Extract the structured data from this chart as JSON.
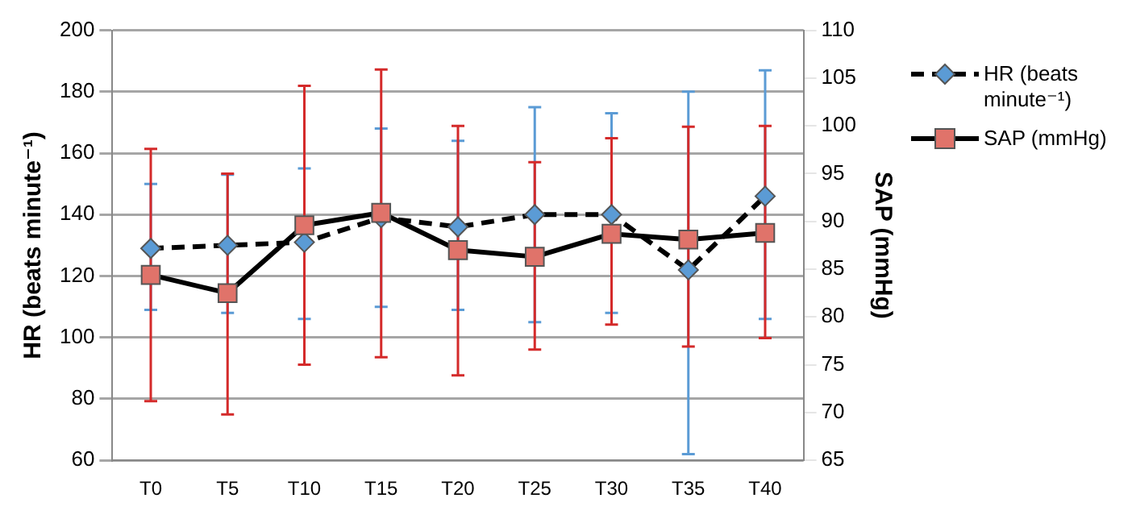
{
  "chart_data": {
    "type": "line",
    "categories": [
      "T0",
      "T5",
      "T10",
      "T15",
      "T20",
      "T25",
      "T30",
      "T35",
      "T40"
    ],
    "ylabel": "HR (beats minute⁻¹)",
    "y2label": "SAP (mmHg)",
    "ylim": [
      60,
      200
    ],
    "yticks": [
      60,
      80,
      100,
      120,
      140,
      160,
      180,
      200
    ],
    "y2lim": [
      65,
      110
    ],
    "y2ticks": [
      65,
      70,
      75,
      80,
      85,
      90,
      95,
      100,
      105,
      110
    ],
    "grid": "y",
    "legend": "top right",
    "series": [
      {
        "name": "HR (beats minute⁻¹)",
        "color": "#5b9bd5",
        "marker": "diamond",
        "line_style": "dashed",
        "values": [
          129,
          130,
          131,
          139,
          136,
          140,
          140,
          122,
          146
        ],
        "errors": [
          [
            109,
            150
          ],
          [
            108,
            153
          ],
          [
            106,
            155
          ],
          [
            110,
            168
          ],
          [
            109,
            164
          ],
          [
            105,
            175
          ],
          [
            108,
            173
          ],
          [
            62,
            180
          ],
          [
            106,
            187
          ]
        ]
      },
      {
        "name": "SAP (mmHg)",
        "color": "#e0736a",
        "marker": "square",
        "line_style": "solid",
        "axis": "y2",
        "values": [
          84.4,
          82.5,
          89.6,
          90.9,
          87.0,
          86.3,
          88.7,
          88.1,
          88.8
        ],
        "errors": [
          [
            71.2,
            97.6
          ],
          [
            69.8,
            95.0
          ],
          [
            75.0,
            104.2
          ],
          [
            75.8,
            105.9
          ],
          [
            73.9,
            100.0
          ],
          [
            76.6,
            96.2
          ],
          [
            79.2,
            98.7
          ],
          [
            76.9,
            99.9
          ],
          [
            77.8,
            100.0
          ]
        ]
      }
    ]
  }
}
